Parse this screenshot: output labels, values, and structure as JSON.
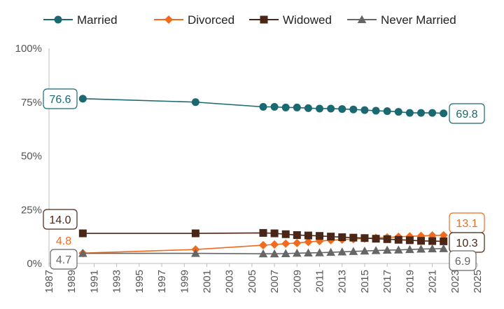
{
  "chart_data": {
    "type": "line",
    "title": "",
    "xlabel": "",
    "ylabel": "",
    "x": [
      1990,
      2000,
      2006,
      2007,
      2008,
      2009,
      2010,
      2011,
      2012,
      2013,
      2014,
      2015,
      2016,
      2017,
      2018,
      2019,
      2020,
      2021,
      2022
    ],
    "xlim": [
      1987,
      2025
    ],
    "x_ticks": [
      "1987",
      "1989",
      "1991",
      "1993",
      "1995",
      "1997",
      "1999",
      "2001",
      "2003",
      "2005",
      "2007",
      "2009",
      "2011",
      "2013",
      "2015",
      "2017",
      "2019",
      "2021",
      "2023",
      "2025"
    ],
    "ylim": [
      0,
      100
    ],
    "y_ticks": [
      "0%",
      "25%",
      "50%",
      "75%",
      "100%"
    ],
    "grid": false,
    "legend": "top",
    "series": [
      {
        "name": "Married",
        "color": "#1a6870",
        "marker": "circle",
        "values": [
          76.6,
          75.0,
          72.8,
          72.8,
          72.5,
          72.5,
          72.2,
          72.0,
          72.0,
          71.8,
          71.6,
          71.3,
          71.0,
          70.8,
          70.5,
          70.0,
          70.0,
          70.0,
          69.8
        ],
        "start_label": "76.6",
        "end_label": "69.8"
      },
      {
        "name": "Divorced",
        "color": "#f26b1d",
        "marker": "diamond",
        "values": [
          4.8,
          6.5,
          8.5,
          8.8,
          9.2,
          9.5,
          10.0,
          10.4,
          10.8,
          11.1,
          11.3,
          11.6,
          11.9,
          12.1,
          12.4,
          12.6,
          12.8,
          13.0,
          13.1
        ],
        "start_label": "4.8",
        "end_label": "13.1"
      },
      {
        "name": "Widowed",
        "color": "#4a2616",
        "marker": "square",
        "values": [
          14.0,
          14.0,
          14.2,
          14.0,
          13.6,
          13.2,
          13.0,
          12.8,
          12.5,
          12.2,
          12.0,
          11.8,
          11.5,
          11.3,
          11.0,
          10.8,
          10.5,
          10.4,
          10.3
        ],
        "start_label": "14.0",
        "end_label": "10.3"
      },
      {
        "name": "Never Married",
        "color": "#666666",
        "marker": "triangle",
        "values": [
          4.7,
          4.7,
          4.5,
          4.5,
          4.6,
          4.8,
          4.9,
          5.0,
          5.2,
          5.4,
          5.6,
          5.8,
          6.0,
          6.2,
          6.3,
          6.5,
          6.7,
          6.8,
          6.9
        ],
        "start_label": "4.7",
        "end_label": "6.9"
      }
    ]
  }
}
